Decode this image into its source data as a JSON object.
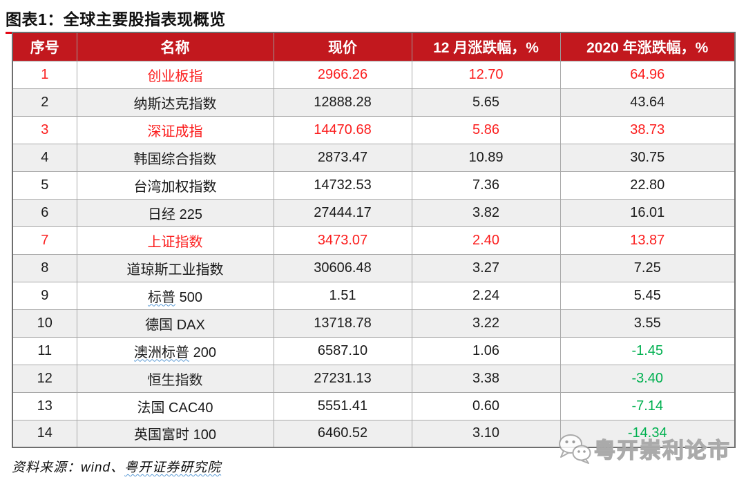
{
  "title": "图表1：全球主要股指表现概览",
  "colors": {
    "header_bg": "#C2181E",
    "title_underline": "#E30613",
    "highlight_red_text": "#FB1D1D",
    "negative_green_text": "#00B050",
    "row_alt_bg": "#EFEFEF",
    "watermark_gray": "#BDBDBD"
  },
  "table": {
    "columns": [
      "序号",
      "名称",
      "现价",
      "12 月涨跌幅，%",
      "2020 年涨跌幅，%"
    ],
    "rows": [
      {
        "no": "1",
        "name": "创业板指",
        "name_wavy": "",
        "price": "2966.26",
        "dec": "12.70",
        "ytd": "64.96",
        "highlight": "red"
      },
      {
        "no": "2",
        "name": "纳斯达克指数",
        "name_wavy": "",
        "price": "12888.28",
        "dec": "5.65",
        "ytd": "43.64",
        "highlight": ""
      },
      {
        "no": "3",
        "name": "深证成指",
        "name_wavy": "",
        "price": "14470.68",
        "dec": "5.86",
        "ytd": "38.73",
        "highlight": "red"
      },
      {
        "no": "4",
        "name": "韩国综合指数",
        "name_wavy": "",
        "price": "2873.47",
        "dec": "10.89",
        "ytd": "30.75",
        "highlight": ""
      },
      {
        "no": "5",
        "name": "台湾加权指数",
        "name_wavy": "",
        "price": "14732.53",
        "dec": "7.36",
        "ytd": "22.80",
        "highlight": ""
      },
      {
        "no": "6",
        "name": "日经 225",
        "name_wavy": "",
        "price": "27444.17",
        "dec": "3.82",
        "ytd": "16.01",
        "highlight": ""
      },
      {
        "no": "7",
        "name": "上证指数",
        "name_wavy": "",
        "price": "3473.07",
        "dec": "2.40",
        "ytd": "13.87",
        "highlight": "red"
      },
      {
        "no": "8",
        "name": "道琼斯工业指数",
        "name_wavy": "",
        "price": "30606.48",
        "dec": "3.27",
        "ytd": "7.25",
        "highlight": ""
      },
      {
        "no": "9",
        "name": "标普 500",
        "name_wavy": "标普",
        "price": "1.51",
        "dec": "2.24",
        "ytd": "5.45",
        "highlight": ""
      },
      {
        "no": "10",
        "name": "德国 DAX",
        "name_wavy": "",
        "price": "13718.78",
        "dec": "3.22",
        "ytd": "3.55",
        "highlight": ""
      },
      {
        "no": "11",
        "name": "澳洲标普 200",
        "name_wavy": "澳洲标普",
        "price": "6587.10",
        "dec": "1.06",
        "ytd": "-1.45",
        "highlight": ""
      },
      {
        "no": "12",
        "name": "恒生指数",
        "name_wavy": "",
        "price": "27231.13",
        "dec": "3.38",
        "ytd": "-3.40",
        "highlight": ""
      },
      {
        "no": "13",
        "name": "法国 CAC40",
        "name_wavy": "",
        "price": "5551.41",
        "dec": "0.60",
        "ytd": "-7.14",
        "highlight": ""
      },
      {
        "no": "14",
        "name": "英国富时 100",
        "name_wavy": "",
        "price": "6460.52",
        "dec": "3.10",
        "ytd": "-14.34",
        "highlight": ""
      }
    ]
  },
  "source_note": {
    "prefix": "资料来源：wind、",
    "wavy": "粤开证券研究院"
  },
  "watermark": {
    "icon": "wechat-icon",
    "text": "粤开崇利论市"
  }
}
